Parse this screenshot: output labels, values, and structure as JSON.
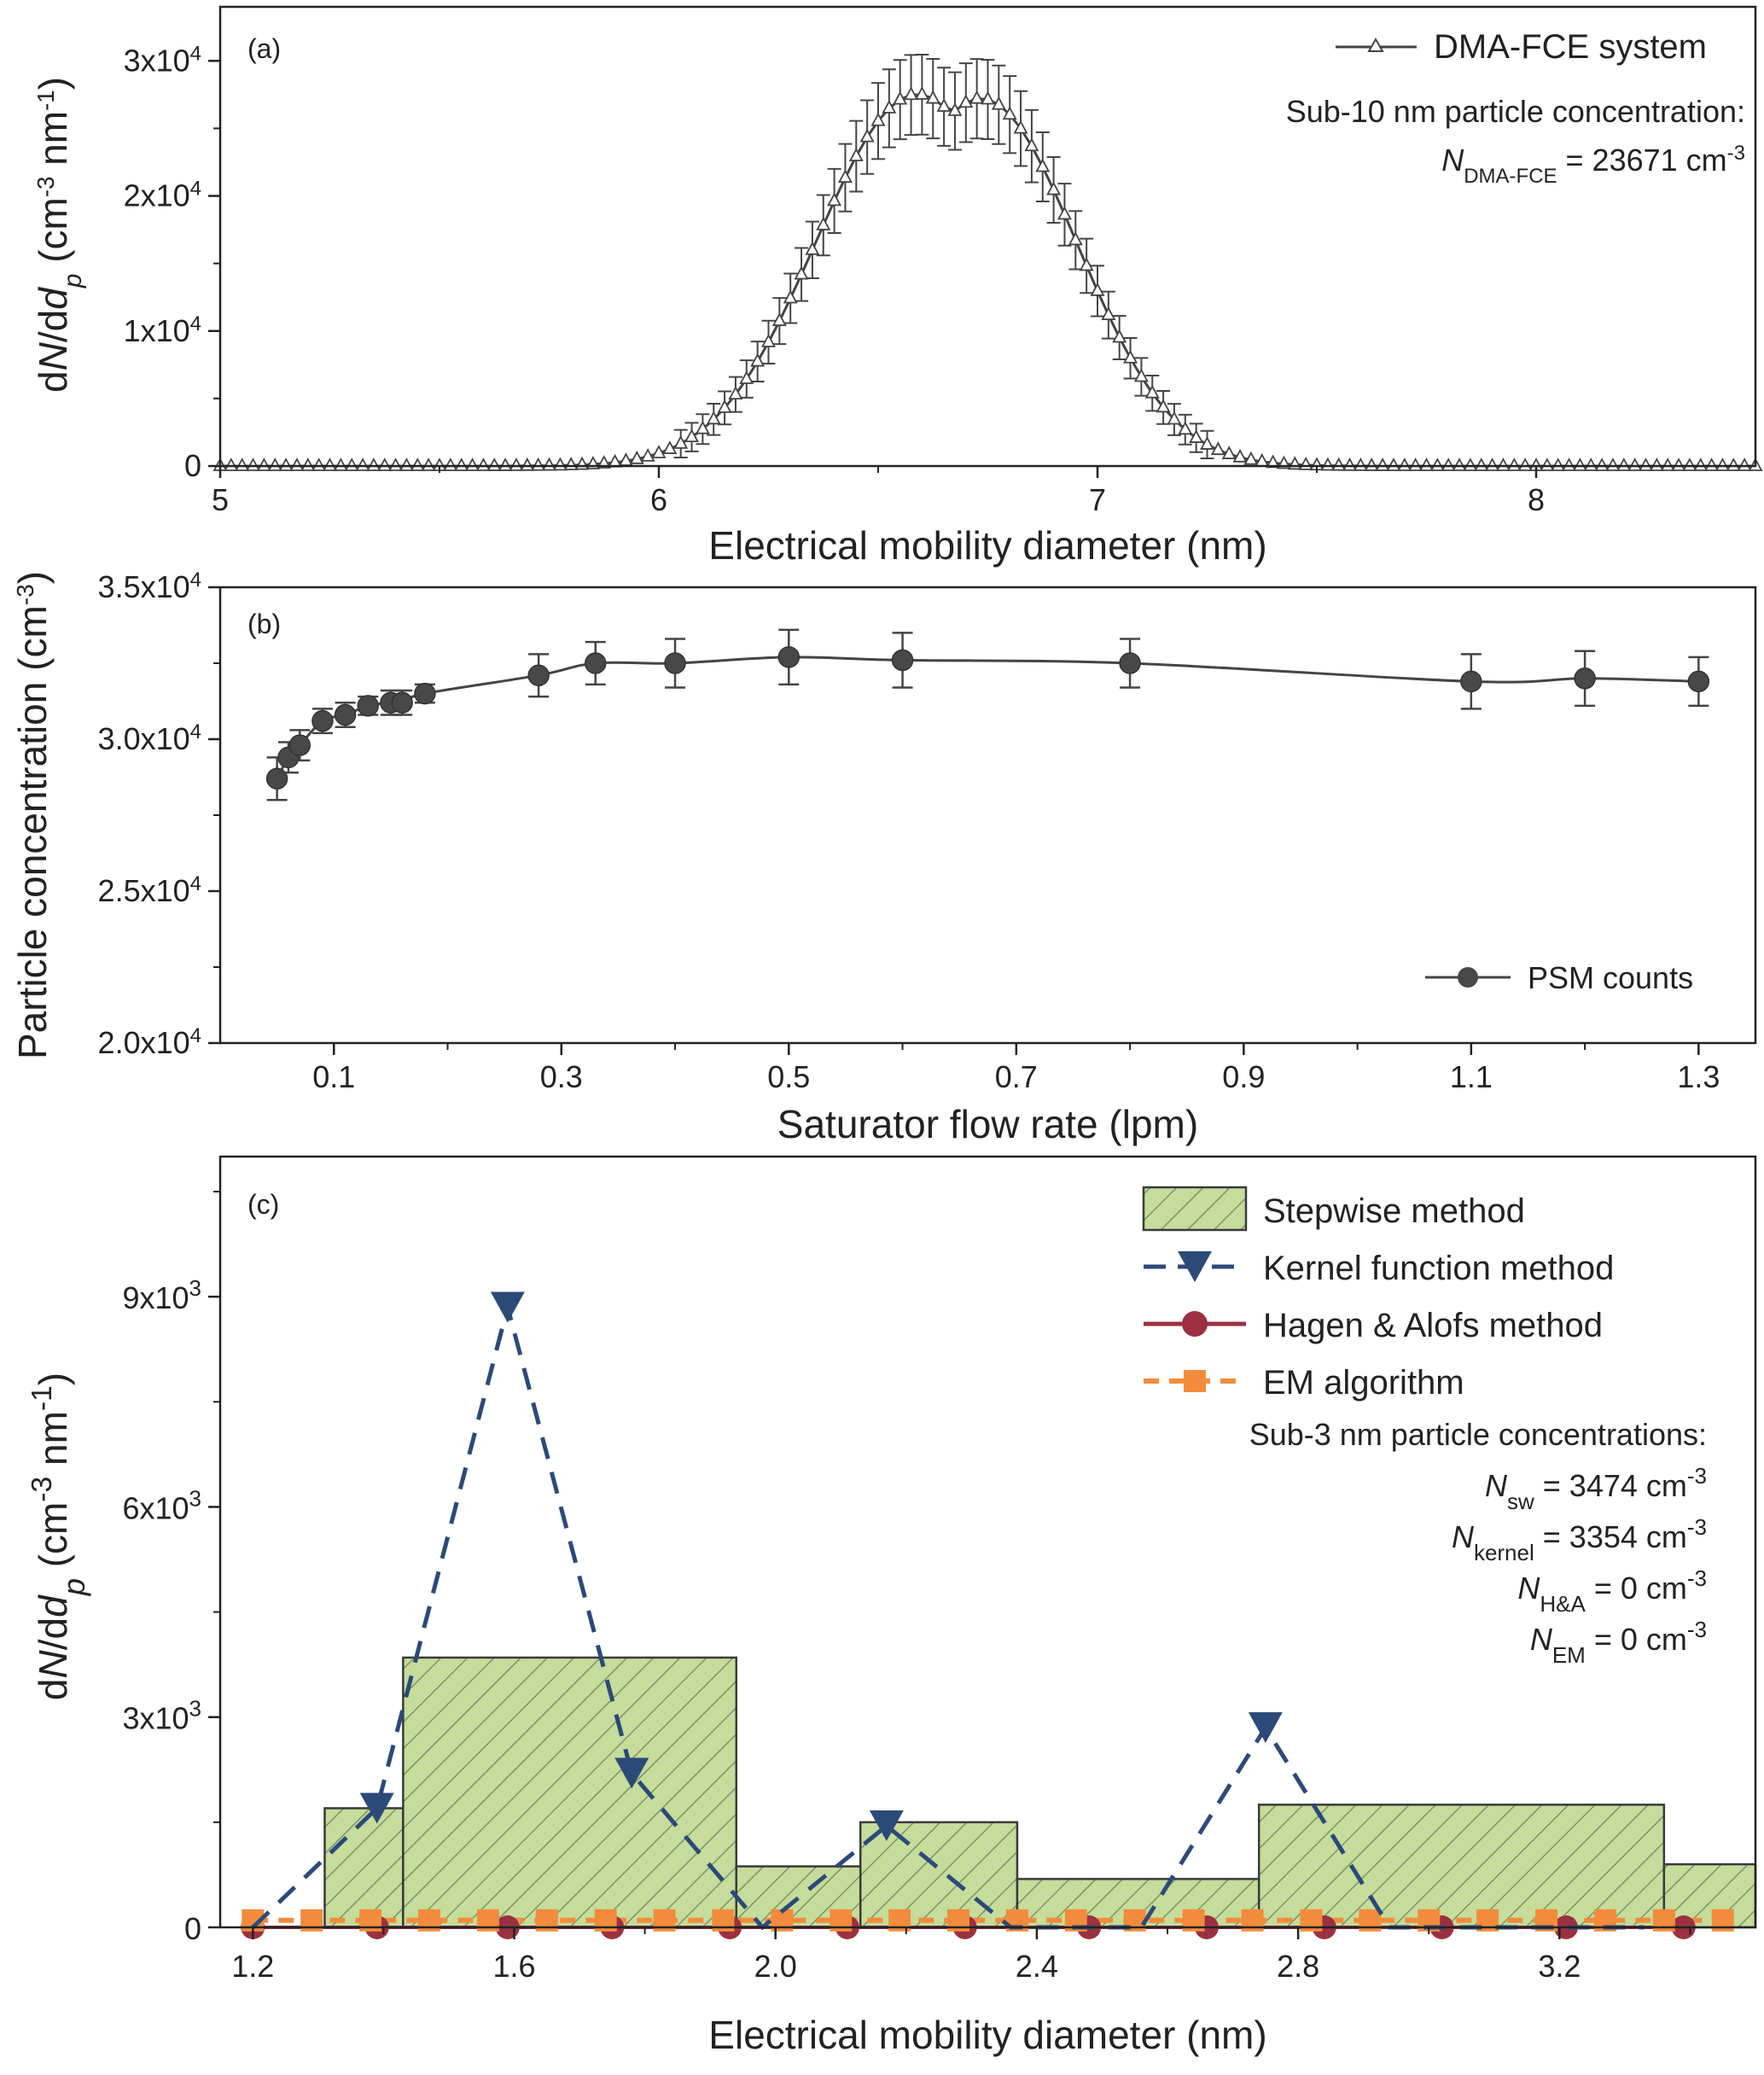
{
  "chart_data": [
    {
      "panel": "(a)",
      "type": "line",
      "xlabel": "Electrical mobility diameter (nm)",
      "ylabel": "dN/ddp (cm-3 nm-1)",
      "ylabel_parts": {
        "pre": "d",
        "N": "N",
        "mid": "/d",
        "d": "d",
        "sub": "p",
        "unit": " (cm",
        "sup1": "-3",
        "mid2": " nm",
        "sup2": "-1",
        "close": ")"
      },
      "xlim": [
        5,
        8.5
      ],
      "ylim": [
        0,
        34000
      ],
      "xticks": [
        5,
        6,
        7,
        8
      ],
      "yticks": [
        0,
        10000,
        20000,
        30000
      ],
      "ytick_labels": [
        {
          "v": 0,
          "base": "0",
          "exp": ""
        },
        {
          "v": 10000,
          "base": "1x10",
          "exp": "4"
        },
        {
          "v": 20000,
          "base": "2x10",
          "exp": "4"
        },
        {
          "v": 30000,
          "base": "3x10",
          "exp": "4"
        }
      ],
      "legend": {
        "position": "top-right",
        "entry": "DMA-FCE system"
      },
      "annotation": {
        "line1": "Sub-10 nm particle concentration:",
        "sym": "N",
        "sub": "DMA-FCE",
        "value": " = 23671 cm",
        "sup": "-3"
      },
      "peak": {
        "x": 6.6,
        "y": 30000
      },
      "series": [
        {
          "name": "DMA-FCE system",
          "marker": "open-triangle",
          "color": "#444444",
          "errorbars": true
        }
      ]
    },
    {
      "panel": "(b)",
      "type": "line",
      "xlabel": "Saturator flow rate (lpm)",
      "ylabel": "Particle concentration (cm-3)",
      "ylabel_parts": {
        "text": "Particle concentration (cm",
        "sup": "-3",
        "close": ")"
      },
      "xlim": [
        0,
        1.35
      ],
      "ylim": [
        20000,
        35000
      ],
      "xticks": [
        0.1,
        0.3,
        0.5,
        0.7,
        0.9,
        1.1,
        1.3
      ],
      "xtick_labels": [
        "0.1",
        "0.3",
        "0.5",
        "0.7",
        "0.9",
        "1.1",
        "1.3"
      ],
      "yticks": [
        20000,
        25000,
        30000,
        35000
      ],
      "ytick_labels": [
        {
          "v": 20000,
          "base": "2.0x10",
          "exp": "4"
        },
        {
          "v": 25000,
          "base": "2.5x10",
          "exp": "4"
        },
        {
          "v": 30000,
          "base": "3.0x10",
          "exp": "4"
        },
        {
          "v": 35000,
          "base": "3.5x10",
          "exp": "4"
        }
      ],
      "legend": {
        "position": "bottom-right",
        "entry": "PSM counts"
      },
      "series": [
        {
          "name": "PSM counts",
          "marker": "filled-circle",
          "color": "#444444",
          "x": [
            0.05,
            0.06,
            0.07,
            0.09,
            0.11,
            0.13,
            0.15,
            0.16,
            0.18,
            0.28,
            0.33,
            0.4,
            0.5,
            0.6,
            0.8,
            1.1,
            1.2,
            1.3
          ],
          "y": [
            28700,
            29400,
            29800,
            30600,
            30800,
            31100,
            31200,
            31200,
            31500,
            32100,
            32500,
            32500,
            32700,
            32600,
            32500,
            31900,
            32000,
            31900
          ],
          "err": [
            700,
            500,
            500,
            400,
            400,
            300,
            400,
            400,
            300,
            700,
            700,
            800,
            900,
            900,
            800,
            900,
            900,
            800
          ]
        }
      ]
    },
    {
      "panel": "(c)",
      "type": "bar",
      "xlabel": "Electrical mobility diameter (nm)",
      "ylabel": "dN/ddp (cm-3 nm-1)",
      "ylabel_parts": {
        "pre": "d",
        "N": "N",
        "mid": "/d",
        "d": "d",
        "sub": "p",
        "unit": " (cm",
        "sup1": "-3",
        "mid2": " nm",
        "sup2": "-1",
        "close": ")"
      },
      "xlim": [
        1.15,
        3.5
      ],
      "ylim": [
        0,
        11000
      ],
      "xticks": [
        1.2,
        1.6,
        2.0,
        2.4,
        2.8,
        3.2
      ],
      "xtick_labels": [
        "1.2",
        "1.6",
        "2.0",
        "2.4",
        "2.8",
        "3.2"
      ],
      "yticks": [
        0,
        3000,
        6000,
        9000
      ],
      "ytick_labels": [
        {
          "v": 0,
          "base": "0",
          "exp": ""
        },
        {
          "v": 3000,
          "base": "3x10",
          "exp": "3"
        },
        {
          "v": 6000,
          "base": "6x10",
          "exp": "3"
        },
        {
          "v": 9000,
          "base": "9x10",
          "exp": "3"
        }
      ],
      "legend": {
        "position": "top-right",
        "entries": [
          "Stepwise method",
          "Kernel function method",
          "Hagen & Alofs method",
          "EM algorithm"
        ]
      },
      "annotation": {
        "title": "Sub-3 nm particle concentrations:",
        "lines": [
          {
            "sym": "N",
            "sub": "sw",
            "value": " = 3474 cm",
            "sup": "-3"
          },
          {
            "sym": "N",
            "sub": "kernel",
            "value": " = 3354 cm",
            "sup": "-3"
          },
          {
            "sym": "N",
            "sub": "H&A",
            "value": " = 0 cm",
            "sup": "-3"
          },
          {
            "sym": "N",
            "sub": "EM",
            "value": " = 0 cm",
            "sup": "-3"
          }
        ]
      },
      "stepwise": {
        "name": "Stepwise method",
        "color": "#c5dc9b",
        "hatch": "#7c9468",
        "bins": [
          {
            "x0": 1.31,
            "x1": 1.43,
            "y": 1700
          },
          {
            "x0": 1.43,
            "x1": 1.94,
            "y": 3850
          },
          {
            "x0": 1.94,
            "x1": 2.13,
            "y": 870
          },
          {
            "x0": 2.13,
            "x1": 2.37,
            "y": 1500
          },
          {
            "x0": 2.37,
            "x1": 2.74,
            "y": 690
          },
          {
            "x0": 2.74,
            "x1": 3.36,
            "y": 1750
          },
          {
            "x0": 3.36,
            "x1": 3.5,
            "y": 900
          }
        ]
      },
      "kernel": {
        "name": "Kernel function method",
        "color": "#2c4a78",
        "x": [
          1.2,
          1.39,
          1.59,
          1.78,
          1.98,
          2.17,
          2.36,
          2.56,
          2.75,
          2.94,
          3.14,
          3.33
        ],
        "y": [
          0,
          1700,
          8850,
          2200,
          0,
          1450,
          0,
          0,
          2850,
          0,
          0,
          0
        ]
      },
      "hagen": {
        "name": "Hagen & Alofs method",
        "color": "#9b3140",
        "x": [
          1.2,
          1.39,
          1.59,
          1.75,
          1.93,
          2.11,
          2.29,
          2.48,
          2.66,
          2.84,
          3.02,
          3.21,
          3.39
        ],
        "y": [
          0,
          0,
          0,
          0,
          0,
          0,
          0,
          0,
          0,
          0,
          0,
          0,
          0
        ]
      },
      "em": {
        "name": "EM algorithm",
        "color": "#f28c3c",
        "x": [
          1.2,
          1.29,
          1.38,
          1.47,
          1.56,
          1.65,
          1.74,
          1.83,
          1.92,
          2.01,
          2.1,
          2.19,
          2.28,
          2.37,
          2.46,
          2.55,
          2.64,
          2.73,
          2.82,
          2.91,
          3.0,
          3.09,
          3.18,
          3.27,
          3.36,
          3.45
        ],
        "y": [
          100,
          100,
          100,
          100,
          100,
          100,
          100,
          100,
          100,
          100,
          100,
          100,
          100,
          100,
          100,
          100,
          100,
          100,
          100,
          100,
          100,
          100,
          100,
          100,
          100,
          100
        ]
      }
    }
  ]
}
